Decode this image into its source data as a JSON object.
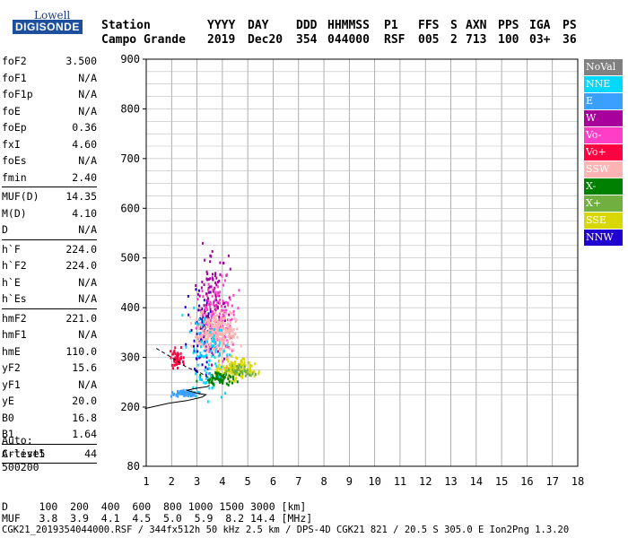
{
  "logo": {
    "line1": "Lowell",
    "line2": "DIGISONDE"
  },
  "header": {
    "labels": [
      "Station",
      "YYYY",
      "DAY",
      "DDD",
      "HHMMSS",
      "P1",
      "FFS",
      "S",
      "AXN",
      "PPS",
      "IGA",
      "PS"
    ],
    "values": [
      "Campo Grande",
      "2019",
      "Dec20",
      "354",
      "044000",
      "RSF",
      "005",
      "2",
      "713",
      "100",
      "03+",
      "36"
    ]
  },
  "params": [
    {
      "label": "foF2",
      "value": "3.500"
    },
    {
      "label": "foF1",
      "value": "N/A"
    },
    {
      "label": "foF1p",
      "value": "N/A"
    },
    {
      "label": "foE",
      "value": "N/A"
    },
    {
      "label": "foEp",
      "value": "0.36"
    },
    {
      "label": "fxI",
      "value": "4.60"
    },
    {
      "label": "foEs",
      "value": "N/A"
    },
    {
      "label": "fmin",
      "value": "2.40",
      "sep": true
    },
    {
      "label": "MUF(D)",
      "value": "14.35"
    },
    {
      "label": "M(D)",
      "value": "4.10"
    },
    {
      "label": "D",
      "value": "N/A",
      "sep": true
    },
    {
      "label": "h`F",
      "value": "224.0"
    },
    {
      "label": "h`F2",
      "value": "224.0"
    },
    {
      "label": "h`E",
      "value": "N/A"
    },
    {
      "label": "h`Es",
      "value": "N/A",
      "sep": true
    },
    {
      "label": "hmF2",
      "value": "221.0"
    },
    {
      "label": "hmF1",
      "value": "N/A"
    },
    {
      "label": "hmE",
      "value": "110.0"
    },
    {
      "label": "yF2",
      "value": "15.6"
    },
    {
      "label": "yF1",
      "value": "N/A"
    },
    {
      "label": "yE",
      "value": "20.0"
    },
    {
      "label": "B0",
      "value": "16.8"
    },
    {
      "label": "B1",
      "value": "1.64",
      "sep": true
    },
    {
      "label": "C-level",
      "value": "44",
      "sep": true
    }
  ],
  "auto": [
    "Auto:",
    "Artist5",
    "500200"
  ],
  "footer": {
    "d_row": "D     100  200  400  600  800 1000 1500 3000 [km]",
    "muf_row": "MUF   3.8  3.9  4.1  4.5  5.0  5.9  8.2 14.4 [MHz]",
    "file_row": "CGK21_2019354044000.RSF / 344fx512h 50 kHz 2.5 km / DPS-4D CGK21 821 / 20.5 S 305.0 E Ion2Png 1.3.20"
  },
  "legend": [
    {
      "label": "NoVal",
      "color": "#808080"
    },
    {
      "label": "NNE",
      "color": "#00d8ff"
    },
    {
      "label": "E",
      "color": "#3aa0ff"
    },
    {
      "label": "W",
      "color": "#a8009a"
    },
    {
      "label": "Vo-",
      "color": "#ff3ec8"
    },
    {
      "label": "Vo+",
      "color": "#ff0040"
    },
    {
      "label": "SSW",
      "color": "#ffb3b3"
    },
    {
      "label": "X-",
      "color": "#008000"
    },
    {
      "label": "X+",
      "color": "#70b040"
    },
    {
      "label": "SSE",
      "color": "#d8d800"
    },
    {
      "label": "NNW",
      "color": "#2000d0"
    }
  ],
  "chart_data": {
    "type": "scatter",
    "xlim": [
      1,
      18
    ],
    "ylim": [
      80,
      900
    ],
    "x_ticks": [
      "1",
      "2",
      "3",
      "4",
      "5",
      "6",
      "7",
      "8",
      "9",
      "10",
      "11",
      "12",
      "13",
      "14",
      "15",
      "16",
      "17",
      "18"
    ],
    "y_ticks": [
      "80",
      "200",
      "300",
      "400",
      "500",
      "600",
      "700",
      "800",
      "900"
    ],
    "grid": true,
    "regions": [
      {
        "name": "NNW",
        "center": [
          3.2,
          350
        ],
        "spread": [
          0.9,
          120
        ],
        "count": 90
      },
      {
        "name": "W",
        "center": [
          3.6,
          420
        ],
        "spread": [
          0.9,
          140
        ],
        "count": 110
      },
      {
        "name": "Vo-",
        "center": [
          3.8,
          380
        ],
        "spread": [
          1.0,
          120
        ],
        "count": 130
      },
      {
        "name": "SSW",
        "center": [
          3.7,
          350
        ],
        "spread": [
          1.2,
          60
        ],
        "count": 260
      },
      {
        "name": "SSE",
        "center": [
          4.5,
          280
        ],
        "spread": [
          1.1,
          30
        ],
        "count": 140
      },
      {
        "name": "X-",
        "center": [
          3.8,
          260
        ],
        "spread": [
          1.0,
          20
        ],
        "count": 70
      },
      {
        "name": "NNE",
        "center": [
          3.4,
          300
        ],
        "spread": [
          1.2,
          140
        ],
        "count": 90
      },
      {
        "name": "Vo+",
        "center": [
          2.2,
          300
        ],
        "spread": [
          0.4,
          30
        ],
        "count": 50
      },
      {
        "name": "E",
        "center": [
          2.5,
          230
        ],
        "spread": [
          0.7,
          8
        ],
        "count": 70
      },
      {
        "name": "X+",
        "center": [
          4.7,
          275
        ],
        "spread": [
          0.8,
          15
        ],
        "count": 40
      }
    ],
    "profile": [
      [
        0.95,
        197
      ],
      [
        1.9,
        208
      ],
      [
        2.6,
        213
      ],
      [
        3.2,
        220
      ],
      [
        3.35,
        225
      ],
      [
        3.0,
        228
      ],
      [
        2.6,
        234
      ],
      [
        3.0,
        238
      ],
      [
        3.4,
        241
      ],
      [
        3.5,
        244
      ]
    ],
    "dashed": [
      [
        1.4,
        318
      ],
      [
        2.0,
        300
      ],
      [
        2.6,
        280
      ],
      [
        3.1,
        270
      ],
      [
        3.5,
        258
      ]
    ]
  }
}
